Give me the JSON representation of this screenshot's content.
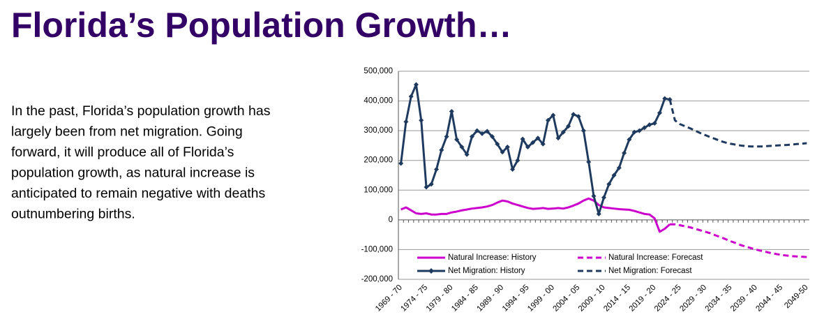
{
  "title": "Florida’s Population Growth…",
  "body": [
    "In the past, Florida’s population growth has",
    "largely been from net migration. Going",
    "forward, it will produce all of Florida’s",
    "population growth, as natural increase is",
    "anticipated to remain negative with deaths",
    "outnumbering births."
  ],
  "chart_data": {
    "type": "line",
    "categories": [
      "1969 - 70",
      null,
      null,
      null,
      null,
      "1974 - 75",
      null,
      null,
      null,
      null,
      "1979 - 80",
      null,
      null,
      null,
      null,
      "1984 - 85",
      null,
      null,
      null,
      null,
      "1989 - 90",
      null,
      null,
      null,
      null,
      "1994 - 95",
      null,
      null,
      null,
      null,
      "1999 - 00",
      null,
      null,
      null,
      null,
      "2004 - 05",
      null,
      null,
      null,
      null,
      "2009 - 10",
      null,
      null,
      null,
      null,
      "2014 - 15",
      null,
      null,
      null,
      null,
      "2019 - 20",
      null,
      null,
      null,
      null,
      "2024 - 25",
      null,
      null,
      null,
      null,
      "2029 - 30",
      null,
      null,
      null,
      null,
      "2034 - 35",
      null,
      null,
      null,
      null,
      "2039 - 40",
      null,
      null,
      null,
      null,
      "2044 - 45",
      null,
      null,
      null,
      null,
      "2049-50"
    ],
    "ylim": [
      -200000,
      500000
    ],
    "yticks": [
      {
        "value": -200000,
        "label": "-200,000"
      },
      {
        "value": -100000,
        "label": "-100,000"
      },
      0,
      {
        "value": 100000,
        "label": "100,000"
      },
      {
        "value": 200000,
        "label": "200,000"
      },
      {
        "value": 300000,
        "label": "300,000"
      },
      {
        "value": 400000,
        "label": "400,000"
      },
      {
        "value": 500000,
        "label": "500,000"
      }
    ],
    "grid": true,
    "series": [
      {
        "name": "Natural Increase: History",
        "color": "#cc00cc",
        "dashed": false,
        "marker": null,
        "values": [
          35000,
          42000,
          32000,
          22000,
          20000,
          22000,
          18000,
          18000,
          20000,
          20000,
          25000,
          28000,
          32000,
          35000,
          38000,
          40000,
          42000,
          45000,
          50000,
          58000,
          65000,
          62000,
          55000,
          50000,
          45000,
          40000,
          37000,
          38000,
          40000,
          37000,
          38000,
          40000,
          38000,
          42000,
          48000,
          55000,
          65000,
          72000,
          65000,
          50000,
          42000,
          40000,
          38000,
          36000,
          35000,
          34000,
          30000,
          25000,
          20000,
          18000,
          5000,
          -40000,
          -30000,
          -15000,
          null,
          null,
          null,
          null,
          null,
          null,
          null,
          null,
          null,
          null,
          null,
          null,
          null,
          null,
          null,
          null,
          null,
          null,
          null,
          null,
          null,
          null,
          null,
          null,
          null,
          null,
          null
        ]
      },
      {
        "name": "Natural Increase: Forecast",
        "color": "#cc00cc",
        "dashed": true,
        "marker": null,
        "values": [
          null,
          null,
          null,
          null,
          null,
          null,
          null,
          null,
          null,
          null,
          null,
          null,
          null,
          null,
          null,
          null,
          null,
          null,
          null,
          null,
          null,
          null,
          null,
          null,
          null,
          null,
          null,
          null,
          null,
          null,
          null,
          null,
          null,
          null,
          null,
          null,
          null,
          null,
          null,
          null,
          null,
          null,
          null,
          null,
          null,
          null,
          null,
          null,
          null,
          null,
          null,
          null,
          null,
          -15000,
          -15000,
          -18000,
          -22000,
          -25000,
          -30000,
          -35000,
          -40000,
          -45000,
          -52000,
          -58000,
          -65000,
          -72000,
          -78000,
          -85000,
          -90000,
          -95000,
          -100000,
          -104000,
          -108000,
          -112000,
          -115000,
          -118000,
          -120000,
          -122000,
          -123000,
          -124000,
          -125000
        ]
      },
      {
        "name": "Net Migration: History",
        "color": "#1f3a5f",
        "dashed": false,
        "marker": "diamond",
        "values": [
          190000,
          330000,
          415000,
          455000,
          335000,
          110000,
          120000,
          170000,
          235000,
          280000,
          365000,
          270000,
          245000,
          220000,
          280000,
          300000,
          290000,
          298000,
          280000,
          255000,
          228000,
          245000,
          170000,
          200000,
          272000,
          245000,
          260000,
          275000,
          255000,
          335000,
          352000,
          275000,
          295000,
          315000,
          355000,
          348000,
          300000,
          195000,
          80000,
          20000,
          75000,
          120000,
          150000,
          175000,
          225000,
          270000,
          295000,
          300000,
          310000,
          320000,
          325000,
          360000,
          408000,
          405000,
          null,
          null,
          null,
          null,
          null,
          null,
          null,
          null,
          null,
          null,
          null,
          null,
          null,
          null,
          null,
          null,
          null,
          null,
          null,
          null,
          null,
          null,
          null,
          null,
          null,
          null,
          null
        ]
      },
      {
        "name": "Net Migration: Forecast",
        "color": "#1f3a5f",
        "dashed": true,
        "marker": null,
        "values": [
          null,
          null,
          null,
          null,
          null,
          null,
          null,
          null,
          null,
          null,
          null,
          null,
          null,
          null,
          null,
          null,
          null,
          null,
          null,
          null,
          null,
          null,
          null,
          null,
          null,
          null,
          null,
          null,
          null,
          null,
          null,
          null,
          null,
          null,
          null,
          null,
          null,
          null,
          null,
          null,
          null,
          null,
          null,
          null,
          null,
          null,
          null,
          null,
          null,
          null,
          null,
          null,
          null,
          405000,
          335000,
          322000,
          315000,
          308000,
          300000,
          292000,
          285000,
          278000,
          272000,
          265000,
          260000,
          256000,
          253000,
          250000,
          248000,
          247000,
          247000,
          247000,
          248000,
          249000,
          250000,
          251000,
          252000,
          253000,
          255000,
          256000,
          258000
        ]
      }
    ]
  }
}
